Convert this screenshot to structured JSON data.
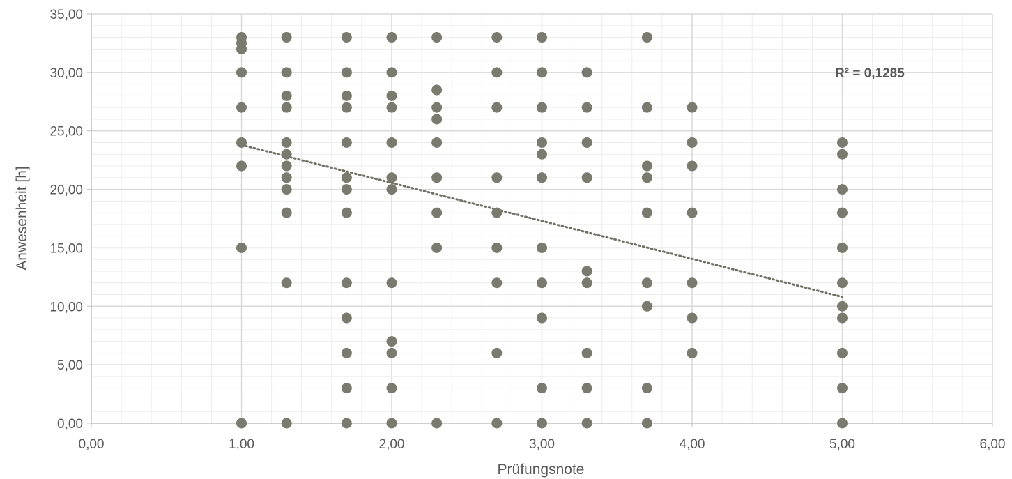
{
  "chart_data": {
    "type": "scatter",
    "xlabel": "Prüfungsnote",
    "ylabel": "Anwesenheit [h]",
    "xlim": [
      0,
      6
    ],
    "ylim": [
      0,
      35
    ],
    "x_major_step": 1,
    "x_minor_step": 0.2,
    "y_major_step": 5,
    "y_minor_step": 1,
    "x_tick_labels": [
      "0,00",
      "1,00",
      "2,00",
      "3,00",
      "4,00",
      "5,00",
      "6,00"
    ],
    "y_tick_labels": [
      "0,00",
      "5,00",
      "10,00",
      "15,00",
      "20,00",
      "25,00",
      "30,00",
      "35,00"
    ],
    "grid": true,
    "annotation": "R² = 0,1285",
    "trendline": {
      "type": "linear",
      "style": "dotted",
      "x_range": [
        1.0,
        5.0
      ],
      "y_start": 23.8,
      "y_end": 10.8
    },
    "colors": {
      "marker": "#7a7a6e",
      "trend": "#6f6f64",
      "grid_major": "#d9d9d9",
      "grid_minor": "#ececec",
      "axis": "#bfbfbf",
      "text": "#595959"
    },
    "points": [
      [
        1.0,
        33
      ],
      [
        1.0,
        32.5
      ],
      [
        1.0,
        32
      ],
      [
        1.0,
        30
      ],
      [
        1.0,
        27
      ],
      [
        1.0,
        24
      ],
      [
        1.0,
        22
      ],
      [
        1.0,
        15
      ],
      [
        1.0,
        0
      ],
      [
        1.3,
        33
      ],
      [
        1.3,
        30
      ],
      [
        1.3,
        28
      ],
      [
        1.3,
        27
      ],
      [
        1.3,
        24
      ],
      [
        1.3,
        23
      ],
      [
        1.3,
        22
      ],
      [
        1.3,
        21
      ],
      [
        1.3,
        20
      ],
      [
        1.3,
        18
      ],
      [
        1.3,
        12
      ],
      [
        1.3,
        0
      ],
      [
        1.7,
        33
      ],
      [
        1.7,
        30
      ],
      [
        1.7,
        28
      ],
      [
        1.7,
        27
      ],
      [
        1.7,
        24
      ],
      [
        1.7,
        21
      ],
      [
        1.7,
        20
      ],
      [
        1.7,
        18
      ],
      [
        1.7,
        12
      ],
      [
        1.7,
        9
      ],
      [
        1.7,
        6
      ],
      [
        1.7,
        3
      ],
      [
        1.7,
        0
      ],
      [
        2.0,
        33
      ],
      [
        2.0,
        30
      ],
      [
        2.0,
        28
      ],
      [
        2.0,
        27
      ],
      [
        2.0,
        24
      ],
      [
        2.0,
        21
      ],
      [
        2.0,
        20
      ],
      [
        2.0,
        12
      ],
      [
        2.0,
        7
      ],
      [
        2.0,
        6
      ],
      [
        2.0,
        3
      ],
      [
        2.0,
        0
      ],
      [
        2.3,
        33
      ],
      [
        2.3,
        28.5
      ],
      [
        2.3,
        27
      ],
      [
        2.3,
        26
      ],
      [
        2.3,
        24
      ],
      [
        2.3,
        21
      ],
      [
        2.3,
        18
      ],
      [
        2.3,
        15
      ],
      [
        2.3,
        0
      ],
      [
        2.7,
        33
      ],
      [
        2.7,
        30
      ],
      [
        2.7,
        27
      ],
      [
        2.7,
        21
      ],
      [
        2.7,
        18
      ],
      [
        2.7,
        15
      ],
      [
        2.7,
        12
      ],
      [
        2.7,
        6
      ],
      [
        2.7,
        0
      ],
      [
        3.0,
        33
      ],
      [
        3.0,
        30
      ],
      [
        3.0,
        27
      ],
      [
        3.0,
        24
      ],
      [
        3.0,
        23
      ],
      [
        3.0,
        21
      ],
      [
        3.0,
        15
      ],
      [
        3.0,
        12
      ],
      [
        3.0,
        9
      ],
      [
        3.0,
        3
      ],
      [
        3.0,
        0
      ],
      [
        3.3,
        30
      ],
      [
        3.3,
        27
      ],
      [
        3.3,
        24
      ],
      [
        3.3,
        21
      ],
      [
        3.3,
        13
      ],
      [
        3.3,
        12
      ],
      [
        3.3,
        6
      ],
      [
        3.3,
        3
      ],
      [
        3.3,
        0
      ],
      [
        3.7,
        33
      ],
      [
        3.7,
        27
      ],
      [
        3.7,
        22
      ],
      [
        3.7,
        21
      ],
      [
        3.7,
        18
      ],
      [
        3.7,
        12
      ],
      [
        3.7,
        10
      ],
      [
        3.7,
        3
      ],
      [
        3.7,
        0
      ],
      [
        4.0,
        27
      ],
      [
        4.0,
        24
      ],
      [
        4.0,
        22
      ],
      [
        4.0,
        18
      ],
      [
        4.0,
        12
      ],
      [
        4.0,
        9
      ],
      [
        4.0,
        6
      ],
      [
        5.0,
        24
      ],
      [
        5.0,
        23
      ],
      [
        5.0,
        20
      ],
      [
        5.0,
        18
      ],
      [
        5.0,
        15
      ],
      [
        5.0,
        12
      ],
      [
        5.0,
        10
      ],
      [
        5.0,
        9
      ],
      [
        5.0,
        6
      ],
      [
        5.0,
        3
      ],
      [
        5.0,
        0
      ]
    ]
  }
}
